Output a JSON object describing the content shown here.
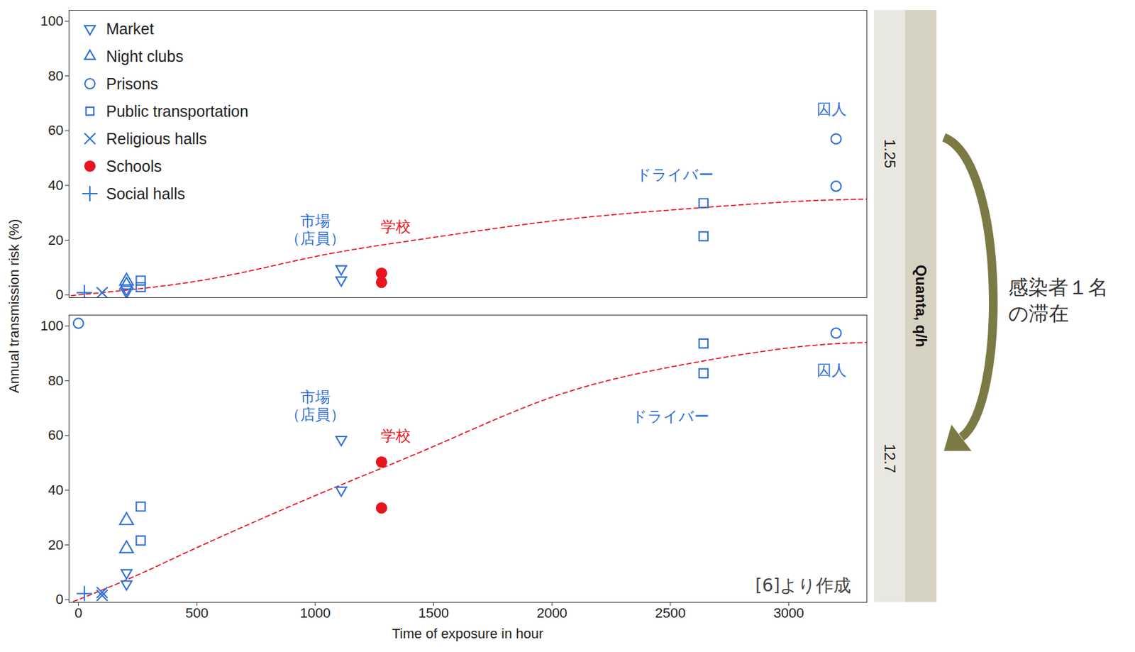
{
  "chart_data": {
    "type": "scatter",
    "x_label": "Time of exposure in hour",
    "y_label": "Annual transmission risk (%)",
    "xlim": [
      -40,
      3330
    ],
    "xticks": [
      0,
      500,
      1000,
      1500,
      2000,
      2500,
      3000
    ],
    "ylim": [
      -1,
      104
    ],
    "yticks": [
      0,
      20,
      40,
      60,
      80,
      100
    ],
    "grid": false,
    "legend": "top-left",
    "facet_label": "Quanta, q/h",
    "arrow_label": "感染者１名の滞在",
    "source": "[6]より作成",
    "panels": [
      {
        "quanta": 1.25,
        "series": [
          {
            "name": "Market",
            "color": "#2f6fd8",
            "marker": "triangle-down",
            "x": [
              203,
              203,
              1110,
              1110
            ],
            "values": [
              2,
              1,
              9.5,
              5.4
            ]
          },
          {
            "name": "Night clubs",
            "color": "#2f6fd8",
            "marker": "triangle",
            "x": [
              203,
              203
            ],
            "values": [
              5,
              3.5
            ]
          },
          {
            "name": "Prisons",
            "color": "#2f6fd8",
            "marker": "circle",
            "x": [
              3200,
              3200
            ],
            "values": [
              57,
              39.7
            ]
          },
          {
            "name": "Public transportation",
            "color": "#2f6fd8",
            "marker": "square",
            "x": [
              263,
              263,
              2640,
              2640
            ],
            "values": [
              5.2,
              2.8,
              33.5,
              21.4
            ]
          },
          {
            "name": "Religious halls",
            "color": "#2f6fd8",
            "marker": "times",
            "x": [
              100
            ],
            "values": [
              0.8
            ]
          },
          {
            "name": "Schools",
            "color": "#e8141e",
            "marker": "dot",
            "x": [
              1280,
              1280
            ],
            "values": [
              7.9,
              4.6
            ]
          },
          {
            "name": "Social halls",
            "color": "#2f6fd8",
            "marker": "plus",
            "x": [
              25
            ],
            "values": [
              0.8
            ]
          }
        ],
        "fit": {
          "color": "#e8141e",
          "line_style": "dashed",
          "x": [
            -40,
            0,
            500,
            1000,
            1500,
            2000,
            2500,
            3000,
            3330
          ],
          "values": [
            -1,
            0,
            5,
            14,
            21,
            27,
            31,
            34,
            35
          ]
        },
        "annotations": [
          {
            "text": "市場\n（店員）",
            "x": 1000,
            "y": 24,
            "color": "#2f6fd8"
          },
          {
            "text": "学校",
            "x": 1340,
            "y": 25,
            "color": "#e8141e"
          },
          {
            "text": "ドライバー",
            "x": 2520,
            "y": 44,
            "color": "#2f6fd8"
          },
          {
            "text": "囚人",
            "x": 3180,
            "y": 68,
            "color": "#2f6fd8"
          }
        ]
      },
      {
        "quanta": 12.7,
        "series": [
          {
            "name": "Market",
            "color": "#2f6fd8",
            "marker": "triangle-down",
            "x": [
              203,
              203,
              1110,
              1110
            ],
            "values": [
              9.8,
              5.7,
              58.5,
              40
            ]
          },
          {
            "name": "Night clubs",
            "color": "#2f6fd8",
            "marker": "triangle",
            "x": [
              203,
              203
            ],
            "values": [
              28.9,
              18.6
            ]
          },
          {
            "name": "Prisons",
            "color": "#2f6fd8",
            "marker": "circle",
            "x": [
              0,
              3200
            ],
            "values": [
              101,
              97.4
            ]
          },
          {
            "name": "Public transportation",
            "color": "#2f6fd8",
            "marker": "square",
            "x": [
              263,
              263,
              2640,
              2640
            ],
            "values": [
              34,
              21.6,
              93.6,
              82.7
            ]
          },
          {
            "name": "Religious halls",
            "color": "#2f6fd8",
            "marker": "times",
            "x": [
              100,
              100
            ],
            "values": [
              2.6,
              1.5
            ]
          },
          {
            "name": "Schools",
            "color": "#e8141e",
            "marker": "dot",
            "x": [
              1280,
              1280
            ],
            "values": [
              50.3,
              33.5
            ]
          },
          {
            "name": "Social halls",
            "color": "#2f6fd8",
            "marker": "plus",
            "x": [
              25
            ],
            "values": [
              2.2
            ]
          }
        ],
        "fit": {
          "color": "#e8141e",
          "line_style": "dashed",
          "x": [
            -40,
            0,
            250,
            500,
            1000,
            1500,
            2000,
            2500,
            3000,
            3330
          ],
          "values": [
            -1,
            0,
            9,
            19,
            38,
            56,
            74,
            85,
            92,
            94
          ]
        },
        "annotations": [
          {
            "text": "市場\n（店員）",
            "x": 1000,
            "y": 71,
            "color": "#2f6fd8"
          },
          {
            "text": "学校",
            "x": 1340,
            "y": 60,
            "color": "#e8141e"
          },
          {
            "text": "ドライバー",
            "x": 2500,
            "y": 67,
            "color": "#2f6fd8"
          },
          {
            "text": "囚人",
            "x": 3180,
            "y": 84,
            "color": "#2f6fd8"
          }
        ]
      }
    ]
  }
}
